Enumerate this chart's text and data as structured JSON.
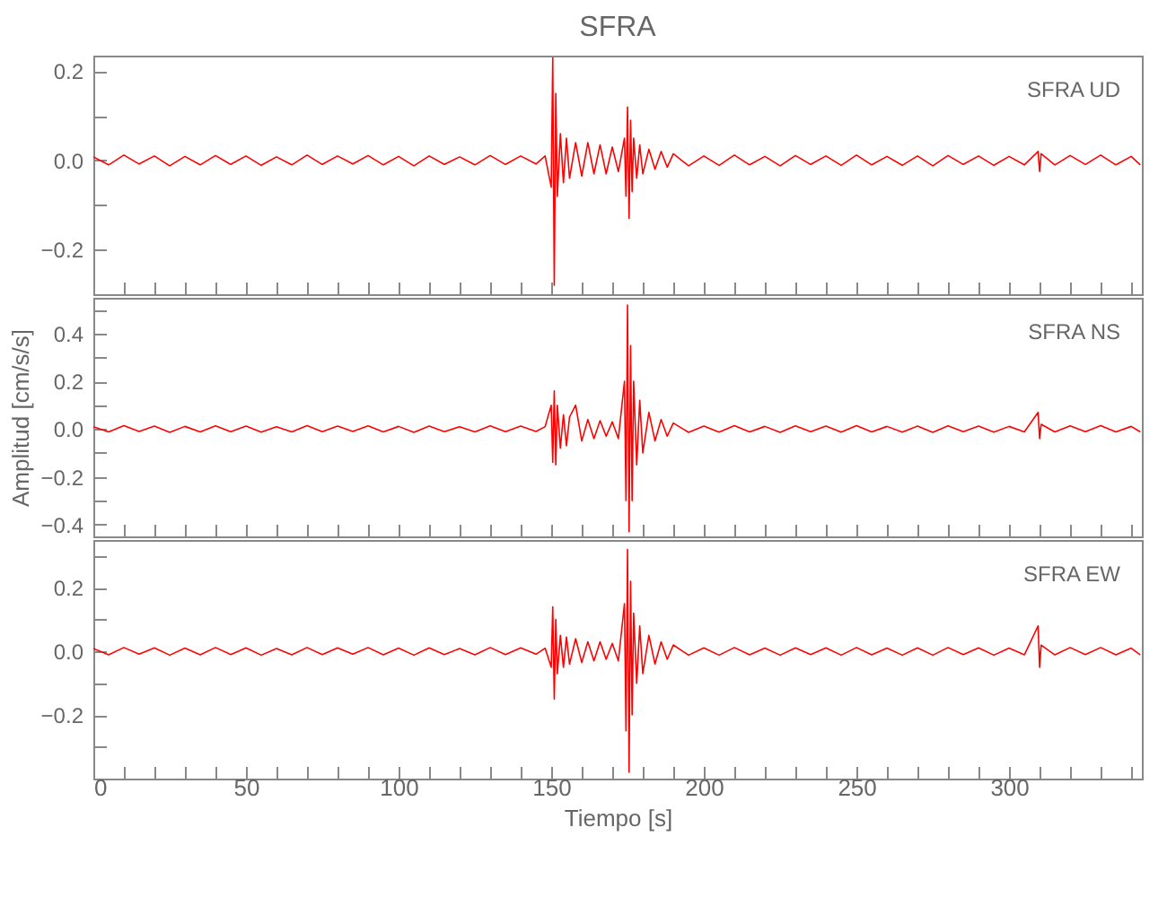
{
  "chart_data": [
    {
      "type": "line",
      "title": "SFRA",
      "annotations": [
        "SFRA UD"
      ],
      "x": [
        0,
        5,
        10,
        15,
        20,
        25,
        30,
        35,
        40,
        45,
        50,
        55,
        60,
        65,
        70,
        75,
        80,
        85,
        90,
        95,
        100,
        105,
        110,
        115,
        120,
        125,
        130,
        135,
        140,
        145,
        148,
        150,
        150.5,
        151,
        151.5,
        152,
        153,
        154,
        155,
        156,
        158,
        160,
        162,
        164,
        166,
        168,
        170,
        172,
        174,
        174.5,
        175,
        175.5,
        176,
        176.5,
        177,
        178,
        179,
        180,
        182,
        184,
        186,
        188,
        190,
        195,
        200,
        205,
        210,
        215,
        220,
        225,
        230,
        235,
        240,
        245,
        250,
        255,
        260,
        265,
        270,
        275,
        280,
        285,
        290,
        295,
        300,
        305,
        309.5,
        310,
        310.5,
        315,
        320,
        325,
        330,
        335,
        340,
        343
      ],
      "series": [
        {
          "color": "#ff0000",
          "values": [
            0.008,
            -0.01,
            0.012,
            -0.008,
            0.01,
            -0.012,
            0.009,
            -0.01,
            0.011,
            -0.009,
            0.01,
            -0.011,
            0.008,
            -0.01,
            0.012,
            -0.009,
            0.01,
            -0.008,
            0.011,
            -0.01,
            0.009,
            -0.012,
            0.01,
            -0.009,
            0.008,
            -0.01,
            0.011,
            -0.009,
            0.01,
            -0.008,
            0.01,
            -0.06,
            0.23,
            -0.28,
            0.15,
            -0.08,
            0.06,
            -0.05,
            0.05,
            -0.04,
            0.04,
            -0.035,
            0.04,
            -0.03,
            0.035,
            -0.03,
            0.03,
            -0.025,
            0.05,
            -0.08,
            0.12,
            -0.13,
            0.09,
            -0.07,
            0.05,
            -0.04,
            0.035,
            -0.03,
            0.025,
            -0.02,
            0.02,
            -0.015,
            0.015,
            -0.012,
            0.01,
            -0.011,
            0.012,
            -0.01,
            0.009,
            -0.012,
            0.011,
            -0.009,
            0.01,
            -0.011,
            0.012,
            -0.01,
            0.009,
            -0.011,
            0.01,
            -0.012,
            0.011,
            -0.009,
            0.01,
            -0.011,
            0.009,
            -0.01,
            0.02,
            -0.025,
            0.015,
            -0.01,
            0.011,
            -0.009,
            0.012,
            -0.01,
            0.009,
            -0.01
          ]
        }
      ],
      "xlim": [
        0,
        343.5
      ],
      "xticks": [
        0,
        {
          "value": 10,
          "label": null
        },
        {
          "value": 20,
          "label": null
        },
        {
          "value": 30,
          "label": null
        },
        {
          "value": 40,
          "label": null
        },
        50,
        {
          "value": 60,
          "label": null
        },
        {
          "value": 70,
          "label": null
        },
        {
          "value": 80,
          "label": null
        },
        {
          "value": 90,
          "label": null
        },
        100,
        {
          "value": 110,
          "label": null
        },
        {
          "value": 120,
          "label": null
        },
        {
          "value": 130,
          "label": null
        },
        {
          "value": 140,
          "label": null
        },
        150,
        {
          "value": 160,
          "label": null
        },
        {
          "value": 170,
          "label": null
        },
        {
          "value": 180,
          "label": null
        },
        {
          "value": 190,
          "label": null
        },
        200,
        {
          "value": 210,
          "label": null
        },
        {
          "value": 220,
          "label": null
        },
        {
          "value": 230,
          "label": null
        },
        {
          "value": 240,
          "label": null
        },
        250,
        {
          "value": 260,
          "label": null
        },
        {
          "value": 270,
          "label": null
        },
        {
          "value": 280,
          "label": null
        },
        {
          "value": 290,
          "label": null
        },
        300,
        {
          "value": 310,
          "label": null
        },
        {
          "value": 320,
          "label": null
        },
        {
          "value": 330,
          "label": null
        },
        {
          "value": 340,
          "label": null
        }
      ],
      "ylim": [
        -0.3,
        0.235
      ],
      "yticks": [
        -0.2,
        {
          "value": -0.1,
          "label": null
        },
        {
          "value": 0,
          "label": "0.0"
        },
        {
          "value": 0.1,
          "label": null
        },
        0.2
      ],
      "tick_labels": "y"
    },
    {
      "type": "line",
      "ylabel": "Amplitud  [cm/s/s]",
      "annotations": [
        "SFRA NS"
      ],
      "x": [
        0,
        5,
        10,
        15,
        20,
        25,
        30,
        35,
        40,
        45,
        50,
        55,
        60,
        65,
        70,
        75,
        80,
        85,
        90,
        95,
        100,
        105,
        110,
        115,
        120,
        125,
        130,
        135,
        140,
        145,
        148,
        150,
        150.5,
        151,
        151.5,
        152,
        153,
        154,
        155,
        156,
        158,
        160,
        162,
        164,
        166,
        168,
        170,
        172,
        174,
        174.5,
        175,
        175.5,
        176,
        176.5,
        177,
        178,
        179,
        180,
        182,
        184,
        186,
        188,
        190,
        195,
        200,
        205,
        210,
        215,
        220,
        225,
        230,
        235,
        240,
        245,
        250,
        255,
        260,
        265,
        270,
        275,
        280,
        285,
        290,
        295,
        300,
        305,
        309.5,
        310,
        310.5,
        315,
        320,
        325,
        330,
        335,
        340,
        343
      ],
      "series": [
        {
          "color": "#ff0000",
          "values": [
            0.01,
            -0.012,
            0.014,
            -0.01,
            0.012,
            -0.014,
            0.011,
            -0.012,
            0.013,
            -0.011,
            0.012,
            -0.013,
            0.01,
            -0.012,
            0.014,
            -0.011,
            0.012,
            -0.01,
            0.013,
            -0.012,
            0.011,
            -0.014,
            0.012,
            -0.011,
            0.01,
            -0.012,
            0.013,
            -0.011,
            0.012,
            -0.01,
            0.01,
            0.1,
            -0.14,
            0.16,
            -0.15,
            0.1,
            -0.08,
            0.06,
            -0.07,
            0.05,
            0.1,
            -0.05,
            0.04,
            -0.04,
            0.035,
            -0.03,
            0.03,
            -0.04,
            0.2,
            -0.3,
            0.52,
            -0.43,
            0.35,
            -0.3,
            0.2,
            -0.15,
            0.12,
            -0.1,
            0.07,
            -0.05,
            0.04,
            -0.03,
            0.025,
            -0.014,
            0.012,
            -0.013,
            0.014,
            -0.012,
            0.011,
            -0.014,
            0.013,
            -0.011,
            0.012,
            -0.013,
            0.014,
            -0.012,
            0.011,
            -0.013,
            0.012,
            -0.014,
            0.013,
            -0.011,
            0.012,
            -0.013,
            0.011,
            -0.012,
            0.07,
            -0.04,
            0.02,
            -0.012,
            0.013,
            -0.011,
            0.014,
            -0.012,
            0.011,
            -0.012
          ]
        }
      ],
      "xlim": [
        0,
        343.5
      ],
      "xticks": [
        0,
        {
          "value": 10,
          "label": null
        },
        {
          "value": 20,
          "label": null
        },
        {
          "value": 30,
          "label": null
        },
        {
          "value": 40,
          "label": null
        },
        50,
        {
          "value": 60,
          "label": null
        },
        {
          "value": 70,
          "label": null
        },
        {
          "value": 80,
          "label": null
        },
        {
          "value": 90,
          "label": null
        },
        100,
        {
          "value": 110,
          "label": null
        },
        {
          "value": 120,
          "label": null
        },
        {
          "value": 130,
          "label": null
        },
        {
          "value": 140,
          "label": null
        },
        150,
        {
          "value": 160,
          "label": null
        },
        {
          "value": 170,
          "label": null
        },
        {
          "value": 180,
          "label": null
        },
        {
          "value": 190,
          "label": null
        },
        200,
        {
          "value": 210,
          "label": null
        },
        {
          "value": 220,
          "label": null
        },
        {
          "value": 230,
          "label": null
        },
        {
          "value": 240,
          "label": null
        },
        250,
        {
          "value": 260,
          "label": null
        },
        {
          "value": 270,
          "label": null
        },
        {
          "value": 280,
          "label": null
        },
        {
          "value": 290,
          "label": null
        },
        300,
        {
          "value": 310,
          "label": null
        },
        {
          "value": 320,
          "label": null
        },
        {
          "value": 330,
          "label": null
        },
        {
          "value": 340,
          "label": null
        }
      ],
      "ylim": [
        -0.45,
        0.55
      ],
      "yticks": [
        -0.4,
        {
          "value": -0.3,
          "label": null
        },
        -0.2,
        {
          "value": -0.1,
          "label": null
        },
        {
          "value": 0,
          "label": "0.0"
        },
        {
          "value": 0.1,
          "label": null
        },
        0.2,
        {
          "value": 0.3,
          "label": null
        },
        0.4,
        {
          "value": 0.5,
          "label": null
        }
      ],
      "tick_labels": "y"
    },
    {
      "type": "line",
      "xlabel": "Tiempo  [s]",
      "annotations": [
        "SFRA EW"
      ],
      "x": [
        0,
        5,
        10,
        15,
        20,
        25,
        30,
        35,
        40,
        45,
        50,
        55,
        60,
        65,
        70,
        75,
        80,
        85,
        90,
        95,
        100,
        105,
        110,
        115,
        120,
        125,
        130,
        135,
        140,
        145,
        148,
        150,
        150.5,
        151,
        151.5,
        152,
        153,
        154,
        155,
        156,
        158,
        160,
        162,
        164,
        166,
        168,
        170,
        172,
        174,
        174.5,
        175,
        175.5,
        176,
        176.5,
        177,
        178,
        179,
        180,
        182,
        184,
        186,
        188,
        190,
        195,
        200,
        205,
        210,
        215,
        220,
        225,
        230,
        235,
        240,
        245,
        250,
        255,
        260,
        265,
        270,
        275,
        280,
        285,
        290,
        295,
        300,
        305,
        309.5,
        310,
        310.5,
        315,
        320,
        325,
        330,
        335,
        340,
        343
      ],
      "series": [
        {
          "color": "#ff0000",
          "values": [
            0.009,
            -0.011,
            0.012,
            -0.009,
            0.011,
            -0.012,
            0.01,
            -0.011,
            0.012,
            -0.01,
            0.011,
            -0.012,
            0.009,
            -0.011,
            0.012,
            -0.01,
            0.011,
            -0.009,
            0.012,
            -0.011,
            0.01,
            -0.012,
            0.011,
            -0.01,
            0.009,
            -0.011,
            0.012,
            -0.01,
            0.011,
            -0.009,
            0.01,
            -0.05,
            0.14,
            -0.15,
            0.1,
            -0.07,
            0.05,
            -0.05,
            0.045,
            -0.04,
            0.04,
            -0.035,
            0.03,
            -0.03,
            0.03,
            -0.025,
            0.025,
            -0.03,
            0.15,
            -0.25,
            0.32,
            -0.38,
            0.22,
            -0.2,
            0.12,
            -0.1,
            0.08,
            -0.07,
            0.05,
            -0.04,
            0.03,
            -0.025,
            0.02,
            -0.012,
            0.011,
            -0.012,
            0.012,
            -0.011,
            0.01,
            -0.012,
            0.011,
            -0.01,
            0.011,
            -0.012,
            0.012,
            -0.011,
            0.01,
            -0.012,
            0.011,
            -0.012,
            0.012,
            -0.01,
            0.011,
            -0.012,
            0.01,
            -0.011,
            0.08,
            -0.05,
            0.02,
            -0.011,
            0.012,
            -0.01,
            0.012,
            -0.011,
            0.01,
            -0.011
          ]
        }
      ],
      "xlim": [
        0,
        343.5
      ],
      "xticks": [
        0,
        {
          "value": 10,
          "label": null
        },
        {
          "value": 20,
          "label": null
        },
        {
          "value": 30,
          "label": null
        },
        {
          "value": 40,
          "label": null
        },
        50,
        {
          "value": 60,
          "label": null
        },
        {
          "value": 70,
          "label": null
        },
        {
          "value": 80,
          "label": null
        },
        {
          "value": 90,
          "label": null
        },
        100,
        {
          "value": 110,
          "label": null
        },
        {
          "value": 120,
          "label": null
        },
        {
          "value": 130,
          "label": null
        },
        {
          "value": 140,
          "label": null
        },
        150,
        {
          "value": 160,
          "label": null
        },
        {
          "value": 170,
          "label": null
        },
        {
          "value": 180,
          "label": null
        },
        {
          "value": 190,
          "label": null
        },
        200,
        {
          "value": 210,
          "label": null
        },
        {
          "value": 220,
          "label": null
        },
        {
          "value": 230,
          "label": null
        },
        {
          "value": 240,
          "label": null
        },
        250,
        {
          "value": 260,
          "label": null
        },
        {
          "value": 270,
          "label": null
        },
        {
          "value": 280,
          "label": null
        },
        {
          "value": 290,
          "label": null
        },
        300,
        {
          "value": 310,
          "label": null
        },
        {
          "value": 320,
          "label": null
        },
        {
          "value": 330,
          "label": null
        },
        {
          "value": 340,
          "label": null
        }
      ],
      "ylim": [
        -0.4,
        0.35
      ],
      "yticks": [
        {
          "value": -0.3,
          "label": null
        },
        -0.2,
        {
          "value": -0.1,
          "label": null
        },
        {
          "value": 0,
          "label": "0.0"
        },
        {
          "value": 0.1,
          "label": null
        },
        0.2,
        {
          "value": 0.3,
          "label": null
        }
      ]
    }
  ]
}
